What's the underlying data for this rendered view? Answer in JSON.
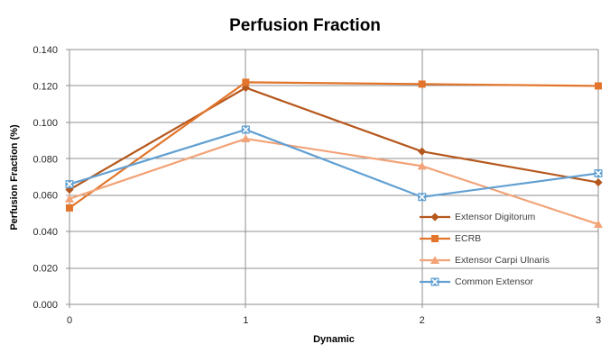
{
  "title": "Perfusion Fraction",
  "colors": {
    "background": "#FFFFFF",
    "grid": "#8F8F8F",
    "tick_text": "#262626",
    "legend_text": "#3F3F3F",
    "extensor_digitorum": "#B5581D",
    "ecrb": "#E2752B",
    "extensor_carpi_ulnaris": "#F2A377",
    "common_extensor": "#62A0D2"
  },
  "chart_data": {
    "type": "line",
    "title": "Perfusion Fraction",
    "xlabel": "Dynamic",
    "ylabel": "Perfusion Fraction (%)",
    "x": [
      0,
      1,
      2,
      3
    ],
    "x_tick_labels": [
      "0",
      "1",
      "2",
      "3"
    ],
    "y_ticks": [
      "0.000",
      "0.020",
      "0.040",
      "0.060",
      "0.080",
      "0.100",
      "0.120",
      "0.140"
    ],
    "ylim": [
      0,
      0.14
    ],
    "grid": true,
    "legend_position": "inside-right",
    "series": [
      {
        "name": "Extensor Digitorum",
        "marker": "diamond",
        "color": "#B5581D",
        "values": [
          0.063,
          0.119,
          0.084,
          0.067
        ]
      },
      {
        "name": "ECRB",
        "marker": "square",
        "color": "#E2752B",
        "values": [
          0.053,
          0.122,
          0.121,
          0.12
        ]
      },
      {
        "name": "Extensor Carpi Ulnaris",
        "marker": "triangle",
        "color": "#F2A377",
        "values": [
          0.058,
          0.091,
          0.076,
          0.044
        ]
      },
      {
        "name": "Common Extensor",
        "marker": "x-square",
        "color": "#62A0D2",
        "values": [
          0.066,
          0.096,
          0.059,
          0.072
        ]
      }
    ]
  }
}
